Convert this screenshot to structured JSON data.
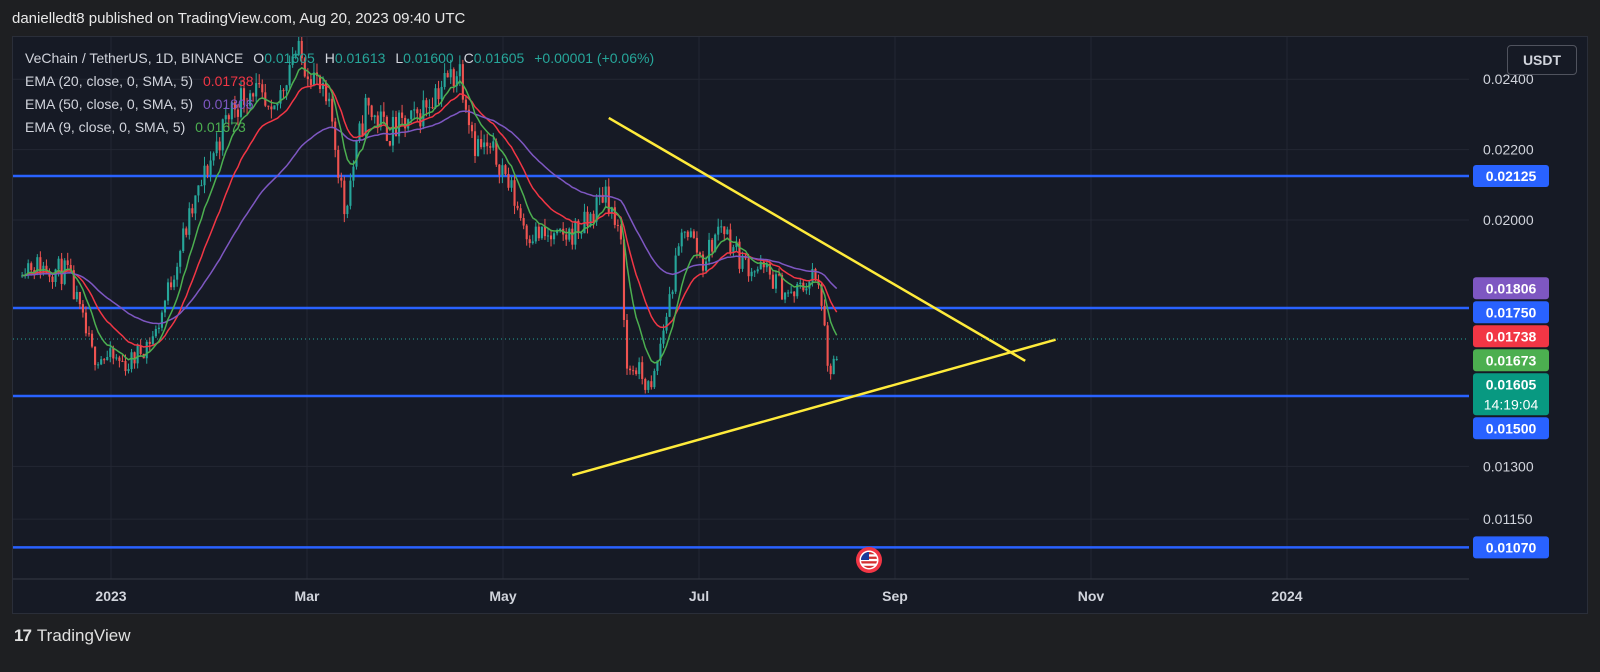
{
  "header": {
    "publisher": "danielledt8 published on TradingView.com, Aug 20, 2023 09:40 UTC"
  },
  "legend": {
    "title": "VeChain / TetherUS, 1D, BINANCE",
    "o_label": "O",
    "o_value": "0.01605",
    "h_label": "H",
    "h_value": "0.01613",
    "l_label": "L",
    "l_value": "0.01600",
    "c_label": "C",
    "c_value": "0.01605",
    "change": "+0.00001 (+0.06%)",
    "ema": [
      {
        "name": "EMA (20, close, 0, SMA, 5)",
        "value": "0.01738",
        "color": "#f23645"
      },
      {
        "name": "EMA (50, close, 0, SMA, 5)",
        "value": "0.01806",
        "color": "#7e57c2"
      },
      {
        "name": "EMA (9, close, 0, SMA, 5)",
        "value": "0.01673",
        "color": "#4caf50"
      }
    ]
  },
  "currency_button": "USDT",
  "footer": {
    "brand": "TradingView",
    "logo": "17"
  },
  "colors": {
    "up": "#26a69a",
    "down": "#ef5350",
    "hline": "#2962ff",
    "trend": "#ffeb3b",
    "ema20": "#f23645",
    "ema50": "#7e57c2",
    "ema9": "#4caf50"
  },
  "chart_data": {
    "type": "candlestick",
    "symbol": "VeChain / TetherUS",
    "interval": "1D",
    "exchange": "BINANCE",
    "currency": "USDT",
    "x_tick_labels": [
      "2023",
      "Mar",
      "May",
      "Jul",
      "Sep",
      "Nov",
      "2024"
    ],
    "y_tick_labels": [
      "0.02400",
      "0.02200",
      "0.02000",
      "0.01300",
      "0.01150"
    ],
    "y_range": [
      0.0098,
      0.0252
    ],
    "x_range": [
      "2022-11-22",
      "2024-03-15"
    ],
    "price_badges": [
      {
        "label": "0.02125",
        "price": 0.02125,
        "color": "#2962ff"
      },
      {
        "label": "0.01806",
        "price": 0.01806,
        "color": "#7e57c2"
      },
      {
        "label": "0.01750",
        "price": 0.0175,
        "color": "#2962ff"
      },
      {
        "label": "0.01738",
        "price": 0.01738,
        "color": "#f23645"
      },
      {
        "label": "0.01673",
        "price": 0.01673,
        "color": "#4caf50"
      },
      {
        "label": "0.01605",
        "price": 0.01605,
        "color": "#089981",
        "sub": "14:19:04"
      },
      {
        "label": "0.01500",
        "price": 0.015,
        "color": "#2962ff"
      },
      {
        "label": "0.01070",
        "price": 0.0107,
        "color": "#2962ff"
      }
    ],
    "horizontal_lines": [
      0.02125,
      0.0175,
      0.015,
      0.0107
    ],
    "trend_lines": [
      {
        "name": "descending resistance",
        "from": {
          "date": "2023-06-06",
          "price": 0.0229
        },
        "to": {
          "date": "2023-10-21",
          "price": 0.016
        }
      },
      {
        "name": "ascending support",
        "from": {
          "date": "2023-05-25",
          "price": 0.01275
        },
        "to": {
          "date": "2023-10-31",
          "price": 0.0166
        }
      }
    ],
    "price_anchors": [
      {
        "date": "2022-11-25",
        "price": 0.0188
      },
      {
        "date": "2022-12-10",
        "price": 0.0185
      },
      {
        "date": "2022-12-18",
        "price": 0.0162
      },
      {
        "date": "2022-12-30",
        "price": 0.0159
      },
      {
        "date": "2023-01-08",
        "price": 0.0168
      },
      {
        "date": "2023-01-17",
        "price": 0.0195
      },
      {
        "date": "2023-01-25",
        "price": 0.0215
      },
      {
        "date": "2023-02-02",
        "price": 0.0232
      },
      {
        "date": "2023-02-09",
        "price": 0.0238
      },
      {
        "date": "2023-02-15",
        "price": 0.0227
      },
      {
        "date": "2023-02-22",
        "price": 0.0248
      },
      {
        "date": "2023-02-28",
        "price": 0.0243
      },
      {
        "date": "2023-03-07",
        "price": 0.0228
      },
      {
        "date": "2023-03-11",
        "price": 0.0203
      },
      {
        "date": "2023-03-18",
        "price": 0.0232
      },
      {
        "date": "2023-03-26",
        "price": 0.0225
      },
      {
        "date": "2023-04-03",
        "price": 0.0228
      },
      {
        "date": "2023-04-10",
        "price": 0.0237
      },
      {
        "date": "2023-04-18",
        "price": 0.0243
      },
      {
        "date": "2023-04-23",
        "price": 0.0222
      },
      {
        "date": "2023-05-01",
        "price": 0.0217
      },
      {
        "date": "2023-05-10",
        "price": 0.0197
      },
      {
        "date": "2023-05-20",
        "price": 0.0194
      },
      {
        "date": "2023-05-30",
        "price": 0.0199
      },
      {
        "date": "2023-06-05",
        "price": 0.0209
      },
      {
        "date": "2023-06-10",
        "price": 0.0192
      },
      {
        "date": "2023-06-12",
        "price": 0.0157
      },
      {
        "date": "2023-06-15",
        "price": 0.0158
      },
      {
        "date": "2023-06-20",
        "price": 0.0151
      },
      {
        "date": "2023-06-26",
        "price": 0.0178
      },
      {
        "date": "2023-07-01",
        "price": 0.0199
      },
      {
        "date": "2023-07-07",
        "price": 0.0188
      },
      {
        "date": "2023-07-13",
        "price": 0.0199
      },
      {
        "date": "2023-07-20",
        "price": 0.0188
      },
      {
        "date": "2023-07-28",
        "price": 0.0185
      },
      {
        "date": "2023-08-05",
        "price": 0.0178
      },
      {
        "date": "2023-08-12",
        "price": 0.0184
      },
      {
        "date": "2023-08-15",
        "price": 0.0178
      },
      {
        "date": "2023-08-17",
        "price": 0.0156
      },
      {
        "date": "2023-08-20",
        "price": 0.01605
      }
    ],
    "last": {
      "open": 0.01605,
      "high": 0.01613,
      "low": 0.016,
      "close": 0.01605,
      "change": 1e-05,
      "change_pct": 0.06
    },
    "ema": [
      {
        "name": "EMA 20",
        "value": 0.01738
      },
      {
        "name": "EMA 50",
        "value": 0.01806
      },
      {
        "name": "EMA 9",
        "value": 0.01673
      }
    ],
    "countdown": "14:19:04",
    "events": [
      {
        "type": "US economic event flag",
        "date": "2023-08-25"
      }
    ],
    "grid": true
  }
}
